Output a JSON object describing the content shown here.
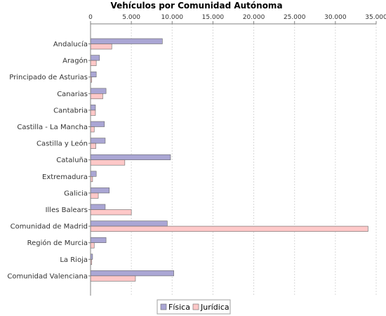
{
  "chart_data": {
    "type": "bar",
    "orientation": "horizontal",
    "title": "Vehículos por Comunidad Autónoma",
    "xlabel": "",
    "ylabel": "",
    "xlim": [
      0,
      35000
    ],
    "x_ticks": [
      0,
      5000,
      10000,
      15000,
      20000,
      25000,
      30000,
      35000
    ],
    "x_tick_labels": [
      "0",
      "5.000",
      "10.000",
      "15.000",
      "20.000",
      "25.000",
      "30.000",
      "35.000"
    ],
    "x_axis_position": "top",
    "grid": true,
    "legend_position": "bottom",
    "categories": [
      "Andalucía",
      "Aragón",
      "Principado de Asturias",
      "Canarias",
      "Cantabria",
      "Castilla - La Mancha",
      "Castilla y León",
      "Cataluña",
      "Extremadura",
      "Galicia",
      "Illes Balears",
      "Comunidad de Madrid",
      "Región de Murcia",
      "La Rioja",
      "Comunidad Valenciana"
    ],
    "series": [
      {
        "name": "Física",
        "color": "#aaa6d4",
        "values": [
          8800,
          1100,
          700,
          1900,
          600,
          1700,
          1800,
          9800,
          700,
          2300,
          1800,
          9400,
          1900,
          250,
          10200
        ]
      },
      {
        "name": "Jurídica",
        "color": "#ffc8c8",
        "values": [
          2600,
          700,
          150,
          1500,
          600,
          450,
          650,
          4200,
          250,
          950,
          5000,
          34000,
          450,
          150,
          5500
        ]
      }
    ]
  }
}
